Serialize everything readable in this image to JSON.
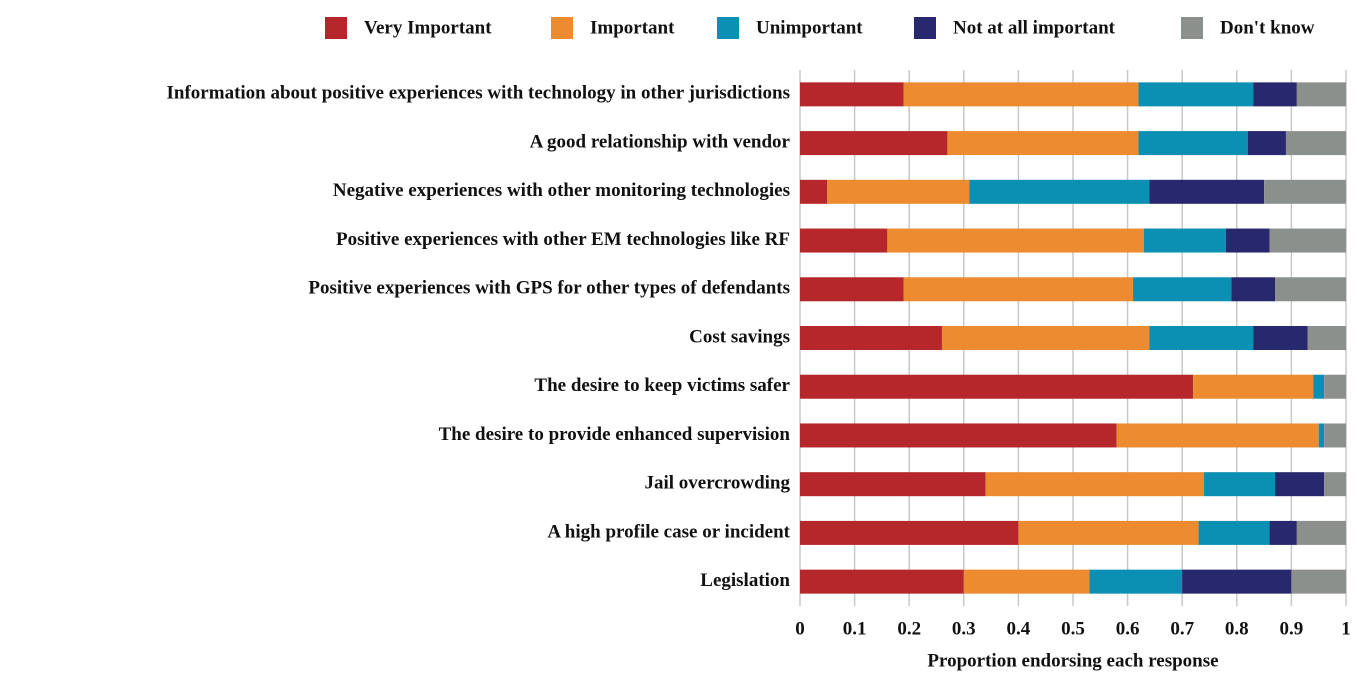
{
  "chart_data": {
    "type": "stacked_bar_horizontal",
    "x_label": "Proportion endorsing each response",
    "categories": [
      "Information about positive experiences with technology in other jurisdictions",
      "A good relationship with vendor",
      "Negative experiences with other monitoring technologies",
      "Positive experiences with other EM technologies like RF",
      "Positive experiences with GPS for other types of defendants",
      "Cost savings",
      "The desire to keep victims safer",
      "The desire to provide enhanced supervision",
      "Jail overcrowding",
      "A high profile case or incident",
      "Legislation"
    ],
    "series": [
      {
        "name": "Very Important",
        "color": "#b5272a",
        "values": [
          0.19,
          0.27,
          0.05,
          0.16,
          0.19,
          0.26,
          0.72,
          0.58,
          0.34,
          0.4,
          0.3
        ]
      },
      {
        "name": "Important",
        "color": "#ec8b2f",
        "values": [
          0.43,
          0.35,
          0.26,
          0.47,
          0.42,
          0.38,
          0.22,
          0.37,
          0.4,
          0.33,
          0.23
        ]
      },
      {
        "name": "Unimportant",
        "color": "#0b8fb3",
        "values": [
          0.21,
          0.2,
          0.33,
          0.15,
          0.18,
          0.19,
          0.02,
          0.01,
          0.13,
          0.13,
          0.17
        ]
      },
      {
        "name": "Not at all important",
        "color": "#28286e",
        "values": [
          0.08,
          0.07,
          0.21,
          0.08,
          0.08,
          0.1,
          0,
          0,
          0.09,
          0.05,
          0.2
        ]
      },
      {
        "name": "Don't know",
        "color": "#8c908d",
        "values": [
          0.09,
          0.11,
          0.15,
          0.14,
          0.13,
          0.07,
          0.04,
          0.04,
          0.04,
          0.09,
          0.1
        ]
      }
    ],
    "xlim": [
      0,
      1
    ],
    "xticks": [
      0,
      0.1,
      0.2,
      0.3,
      0.4,
      0.5,
      0.6,
      0.7,
      0.8,
      0.9,
      1
    ],
    "grid": true,
    "legend": "top"
  }
}
